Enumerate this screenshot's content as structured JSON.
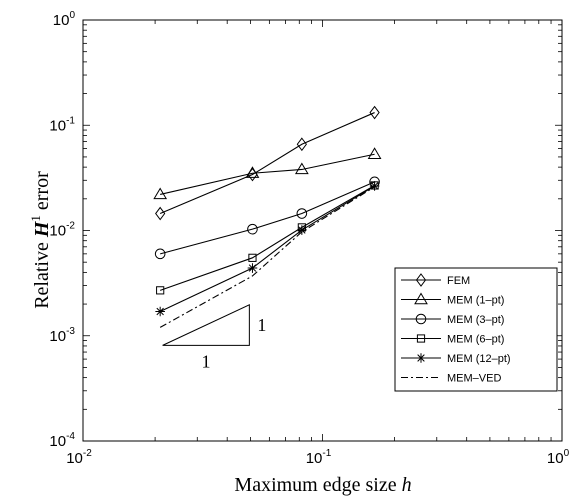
{
  "chart_data": {
    "type": "line",
    "xscale": "log",
    "yscale": "log",
    "xlim": [
      0.01,
      1
    ],
    "ylim": [
      0.0001,
      1
    ],
    "x_ticks": [
      {
        "base": "10",
        "exp": "-2",
        "value": 0.01
      },
      {
        "base": "10",
        "exp": "-1",
        "value": 0.1
      },
      {
        "base": "10",
        "exp": "0",
        "value": 1
      }
    ],
    "y_ticks": [
      {
        "base": "10",
        "exp": "-4",
        "value": 0.0001
      },
      {
        "base": "10",
        "exp": "-3",
        "value": 0.001
      },
      {
        "base": "10",
        "exp": "-2",
        "value": 0.01
      },
      {
        "base": "10",
        "exp": "-1",
        "value": 0.1
      },
      {
        "base": "10",
        "exp": "0",
        "value": 1
      }
    ],
    "xlabel_text": "Maximum edge size",
    "xlabel_var": "h",
    "ylabel_text": "Relative",
    "ylabel_var": "H",
    "ylabel_sup": "1",
    "ylabel_tail": "error",
    "legend_position": "right",
    "series": [
      {
        "name": "FEM",
        "marker": "diamond",
        "style": "solid",
        "x": [
          0.021,
          0.051,
          0.082,
          0.165
        ],
        "y": [
          0.0145,
          0.034,
          0.066,
          0.132
        ]
      },
      {
        "name": "MEM (1–pt)",
        "marker": "triangle",
        "style": "solid",
        "x": [
          0.021,
          0.051,
          0.082,
          0.165
        ],
        "y": [
          0.022,
          0.035,
          0.038,
          0.053
        ]
      },
      {
        "name": "MEM (3–pt)",
        "marker": "circle",
        "style": "solid",
        "x": [
          0.021,
          0.051,
          0.082,
          0.165
        ],
        "y": [
          0.006,
          0.0103,
          0.0145,
          0.029
        ]
      },
      {
        "name": "MEM (6–pt)",
        "marker": "square",
        "style": "solid",
        "x": [
          0.021,
          0.051,
          0.082,
          0.165
        ],
        "y": [
          0.0027,
          0.0055,
          0.0107,
          0.0268
        ]
      },
      {
        "name": "MEM (12–pt)",
        "marker": "star",
        "style": "solid",
        "x": [
          0.021,
          0.051,
          0.082,
          0.165
        ],
        "y": [
          0.0017,
          0.0044,
          0.0101,
          0.0265
        ]
      },
      {
        "name": "MEM–VED",
        "marker": "none",
        "style": "dashdot",
        "x": [
          0.021,
          0.051,
          0.082,
          0.165
        ],
        "y": [
          0.0012,
          0.0037,
          0.0097,
          0.026
        ]
      }
    ],
    "slope_triangle": {
      "x0": 0.0215,
      "x1": 0.0495,
      "y0": 0.00081,
      "y1": 0.00197,
      "label_rise": "1",
      "label_run": "1"
    }
  }
}
